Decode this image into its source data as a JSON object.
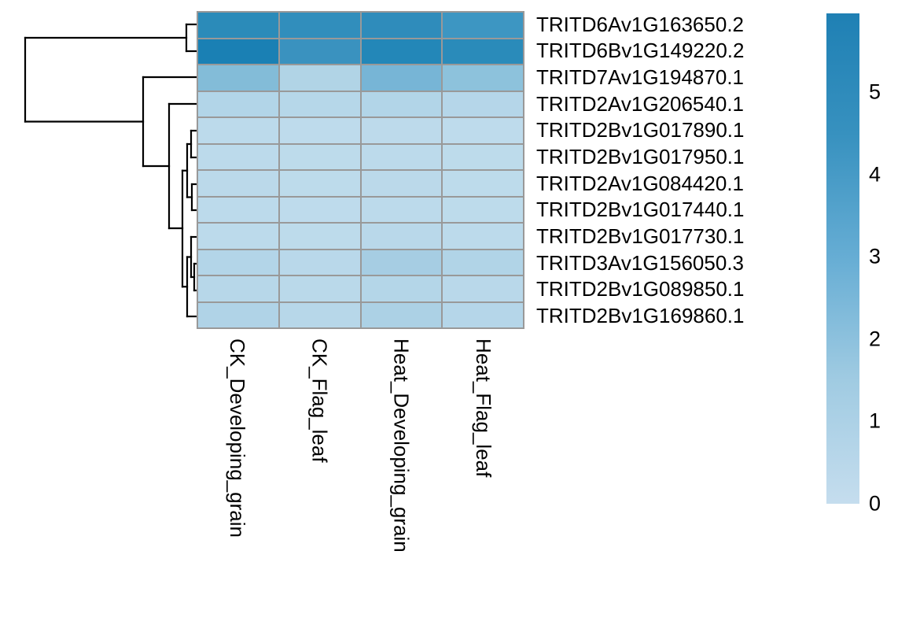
{
  "figure": {
    "background": "#ffffff",
    "text_color": "#000000"
  },
  "chart_data": {
    "type": "heatmap",
    "title": "",
    "rows": [
      "TRITD6Av1G163650.2",
      "TRITD6Bv1G149220.2",
      "TRITD7Av1G194870.1",
      "TRITD2Av1G206540.1",
      "TRITD2Bv1G017890.1",
      "TRITD2Bv1G017950.1",
      "TRITD2Av1G084420.1",
      "TRITD2Bv1G017440.1",
      "TRITD2Bv1G017730.1",
      "TRITD3Av1G156050.3",
      "TRITD2Bv1G089850.1",
      "TRITD2Bv1G169860.1"
    ],
    "columns": [
      "CK_Developing_grain",
      "CK_Flag_leaf",
      "Heat_Developing_grain",
      "Heat_Flag_leaf"
    ],
    "values": [
      [
        5.3,
        5.2,
        5.3,
        4.6
      ],
      [
        6.0,
        4.9,
        5.6,
        5.3
      ],
      [
        2.2,
        0.6,
        2.6,
        1.8
      ],
      [
        0.5,
        0.4,
        0.5,
        0.45
      ],
      [
        0.15,
        0.1,
        0.12,
        0.1
      ],
      [
        0.15,
        0.12,
        0.15,
        0.12
      ],
      [
        0.2,
        0.12,
        0.2,
        0.12
      ],
      [
        0.15,
        0.1,
        0.15,
        0.12
      ],
      [
        0.15,
        0.12,
        0.25,
        0.15
      ],
      [
        0.5,
        0.3,
        1.0,
        0.55
      ],
      [
        0.35,
        0.25,
        0.45,
        0.3
      ],
      [
        0.65,
        0.35,
        0.85,
        0.45
      ]
    ],
    "cell_colors": [
      [
        "#2b8bb9",
        "#318ebc",
        "#2f8cbb",
        "#3d96c2"
      ],
      [
        "#1a80b4",
        "#3a92bf",
        "#2387b8",
        "#2a8bba"
      ],
      [
        "#83bcd8",
        "#b1d4e6",
        "#77b5d6",
        "#8dc2dc"
      ],
      [
        "#b2d5e8",
        "#b6d7e9",
        "#b2d5e8",
        "#b5d6e9"
      ],
      [
        "#bcdaeb",
        "#bedbec",
        "#bddaeb",
        "#bedbec"
      ],
      [
        "#bcdaeb",
        "#bddbeb",
        "#bcdaeb",
        "#bddbeb"
      ],
      [
        "#bbd9ea",
        "#bddbeb",
        "#bbd9ea",
        "#bddbeb"
      ],
      [
        "#bcdaeb",
        "#bedbec",
        "#bcdaeb",
        "#bddbeb"
      ],
      [
        "#bcdaeb",
        "#bddbeb",
        "#b9d8ea",
        "#bcdaeb"
      ],
      [
        "#b3d5e8",
        "#b9d8ea",
        "#a6cde3",
        "#b1d4e7"
      ],
      [
        "#b7d7e9",
        "#bad9ea",
        "#b4d6e8",
        "#b9d8ea"
      ],
      [
        "#b0d3e7",
        "#b7d7e9",
        "#acd1e5",
        "#b5d6e9"
      ]
    ],
    "grid_color": "#999999",
    "colorbar": {
      "position": "right",
      "min": 0,
      "max": 5.96,
      "ticks": [
        5,
        4,
        3,
        2,
        1,
        0
      ],
      "gradient": [
        {
          "value": 0,
          "color": "#c5ddee"
        },
        {
          "value": 1.5,
          "color": "#a0cbe2"
        },
        {
          "value": 3,
          "color": "#66add4"
        },
        {
          "value": 4.5,
          "color": "#3791bf"
        },
        {
          "value": 5.96,
          "color": "#1f80b4"
        }
      ]
    },
    "row_dendrogram": {
      "line_color": "#000000",
      "segments": [
        [
          237,
          31,
          237,
          65
        ],
        [
          32,
          48,
          32,
          154.5
        ],
        [
          182,
          98,
          182,
          211
        ],
        [
          215,
          132,
          215,
          290
        ],
        [
          232,
          216.75,
          232,
          364.25
        ],
        [
          238,
          183,
          238,
          250.5
        ],
        [
          243,
          166,
          243,
          200
        ],
        [
          244,
          234,
          244,
          267
        ],
        [
          243,
          301,
          243,
          352
        ],
        [
          247,
          335,
          247,
          369
        ],
        [
          238,
          326.5,
          238,
          402
        ],
        [
          237,
          31,
          250,
          31
        ],
        [
          237,
          65,
          250,
          65
        ],
        [
          32,
          48,
          237,
          48
        ],
        [
          32,
          154.5,
          182,
          154.5
        ],
        [
          182,
          98,
          250,
          98
        ],
        [
          182,
          211,
          215,
          211
        ],
        [
          215,
          132,
          250,
          132
        ],
        [
          215,
          290,
          232,
          290
        ],
        [
          232,
          216.75,
          238,
          216.75
        ],
        [
          232,
          364.25,
          238,
          364.25
        ],
        [
          238,
          183,
          243,
          183
        ],
        [
          238,
          250.5,
          244,
          250.5
        ],
        [
          243,
          166,
          250,
          166
        ],
        [
          243,
          200,
          250,
          200
        ],
        [
          244,
          234,
          250,
          234
        ],
        [
          244,
          267,
          250,
          267
        ],
        [
          243,
          301,
          250,
          301
        ],
        [
          238,
          326.5,
          243,
          326.5
        ],
        [
          243,
          352,
          247,
          352
        ],
        [
          247,
          335,
          250,
          335
        ],
        [
          247,
          369,
          250,
          369
        ],
        [
          238,
          402,
          250,
          402
        ]
      ]
    }
  }
}
